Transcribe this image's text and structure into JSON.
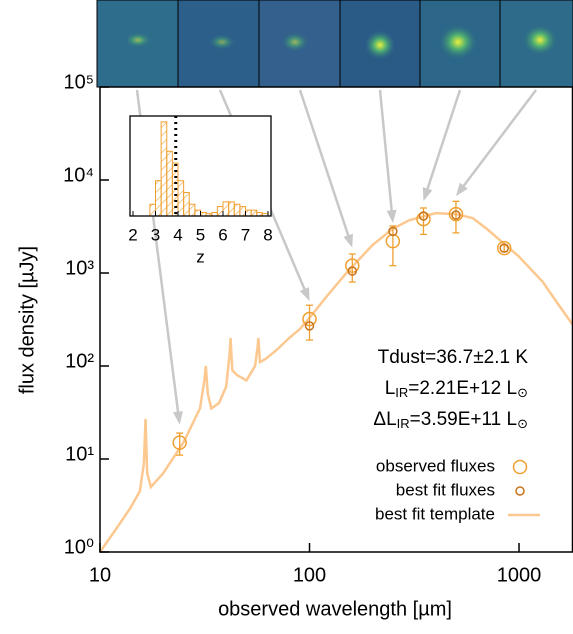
{
  "chart_data": [
    {
      "type": "scatter",
      "xlabel": "observed wavelength [µm]",
      "ylabel": "flux density [µJy]",
      "xlog": true,
      "ylog": true,
      "xlim": [
        10,
        1800
      ],
      "ylim": [
        1,
        100000
      ],
      "xticks": [
        10,
        100,
        1000
      ],
      "yticks": [
        {
          "value": 1,
          "label": "10⁰"
        },
        {
          "value": 10,
          "label": "10¹"
        },
        {
          "value": 100,
          "label": "10²"
        },
        {
          "value": 1000,
          "label": "10³"
        },
        {
          "value": 10000,
          "label": "10⁴"
        },
        {
          "value": 100000,
          "label": "10⁵"
        }
      ],
      "series": [
        {
          "name": "observed fluxes",
          "marker": "circle-large",
          "color": "#f0a030",
          "x": [
            24,
            100,
            160,
            250,
            350,
            500,
            850
          ],
          "values": [
            15,
            320,
            1200,
            2200,
            3800,
            4300,
            1850
          ],
          "errors": [
            4,
            130,
            400,
            1000,
            1200,
            1600,
            150
          ]
        },
        {
          "name": "best fit fluxes",
          "marker": "circle-small",
          "color": "#c8741c",
          "x": [
            100,
            160,
            250,
            350,
            500,
            850
          ],
          "values": [
            270,
            1050,
            2800,
            4100,
            4200,
            1850
          ]
        },
        {
          "name": "best fit template",
          "marker": "line",
          "color": "#fcc890",
          "x": [
            10,
            12,
            14,
            15.5,
            16.2,
            16.5,
            16.8,
            17.5,
            20,
            25,
            30,
            31.5,
            32,
            32.7,
            34,
            37,
            40,
            41.5,
            42,
            42.8,
            45,
            50,
            55,
            56.5,
            57,
            58,
            62,
            70,
            80,
            90,
            100,
            120,
            150,
            200,
            250,
            300,
            400,
            500,
            600,
            700,
            1000,
            1300,
            1500,
            1800
          ],
          "values": [
            1,
            1.8,
            3,
            4.5,
            9,
            27,
            7,
            5,
            7,
            15,
            35,
            70,
            100,
            50,
            35,
            40,
            60,
            130,
            200,
            90,
            80,
            70,
            100,
            160,
            200,
            110,
            120,
            150,
            200,
            250,
            330,
            550,
            1000,
            2000,
            3000,
            3700,
            4400,
            4300,
            3900,
            3000,
            1500,
            800,
            500,
            280
          ]
        }
      ],
      "annotations": [
        {
          "text": "Tdust=36.7±2.1 K"
        },
        {
          "prefix": "L",
          "sub": "IR",
          "text": "=2.21E+12 L",
          "sub2": "⊙"
        },
        {
          "prefix": "ΔL",
          "sub": "IR",
          "text": "=3.59E+11 L",
          "sub2": "⊙"
        }
      ]
    },
    {
      "type": "histogram",
      "xlabel": "z",
      "xlim": [
        2,
        8
      ],
      "ylim": [
        0,
        85
      ],
      "xticks": [
        2,
        3,
        4,
        5,
        6,
        7,
        8
      ],
      "bins": [
        2.75,
        3,
        3.25,
        3.5,
        3.75,
        4,
        4.25,
        4.5,
        4.75,
        5,
        5.25,
        5.5,
        5.75,
        6,
        6.25,
        6.5,
        6.75,
        7,
        7.25,
        7.5,
        7.75,
        8
      ],
      "counts": [
        10,
        30,
        80,
        55,
        45,
        30,
        20,
        10,
        5,
        3,
        2,
        3,
        8,
        12,
        12,
        10,
        8,
        5,
        5,
        3,
        2
      ],
      "color": "#f0a030",
      "marker_line": 3.9
    }
  ]
}
